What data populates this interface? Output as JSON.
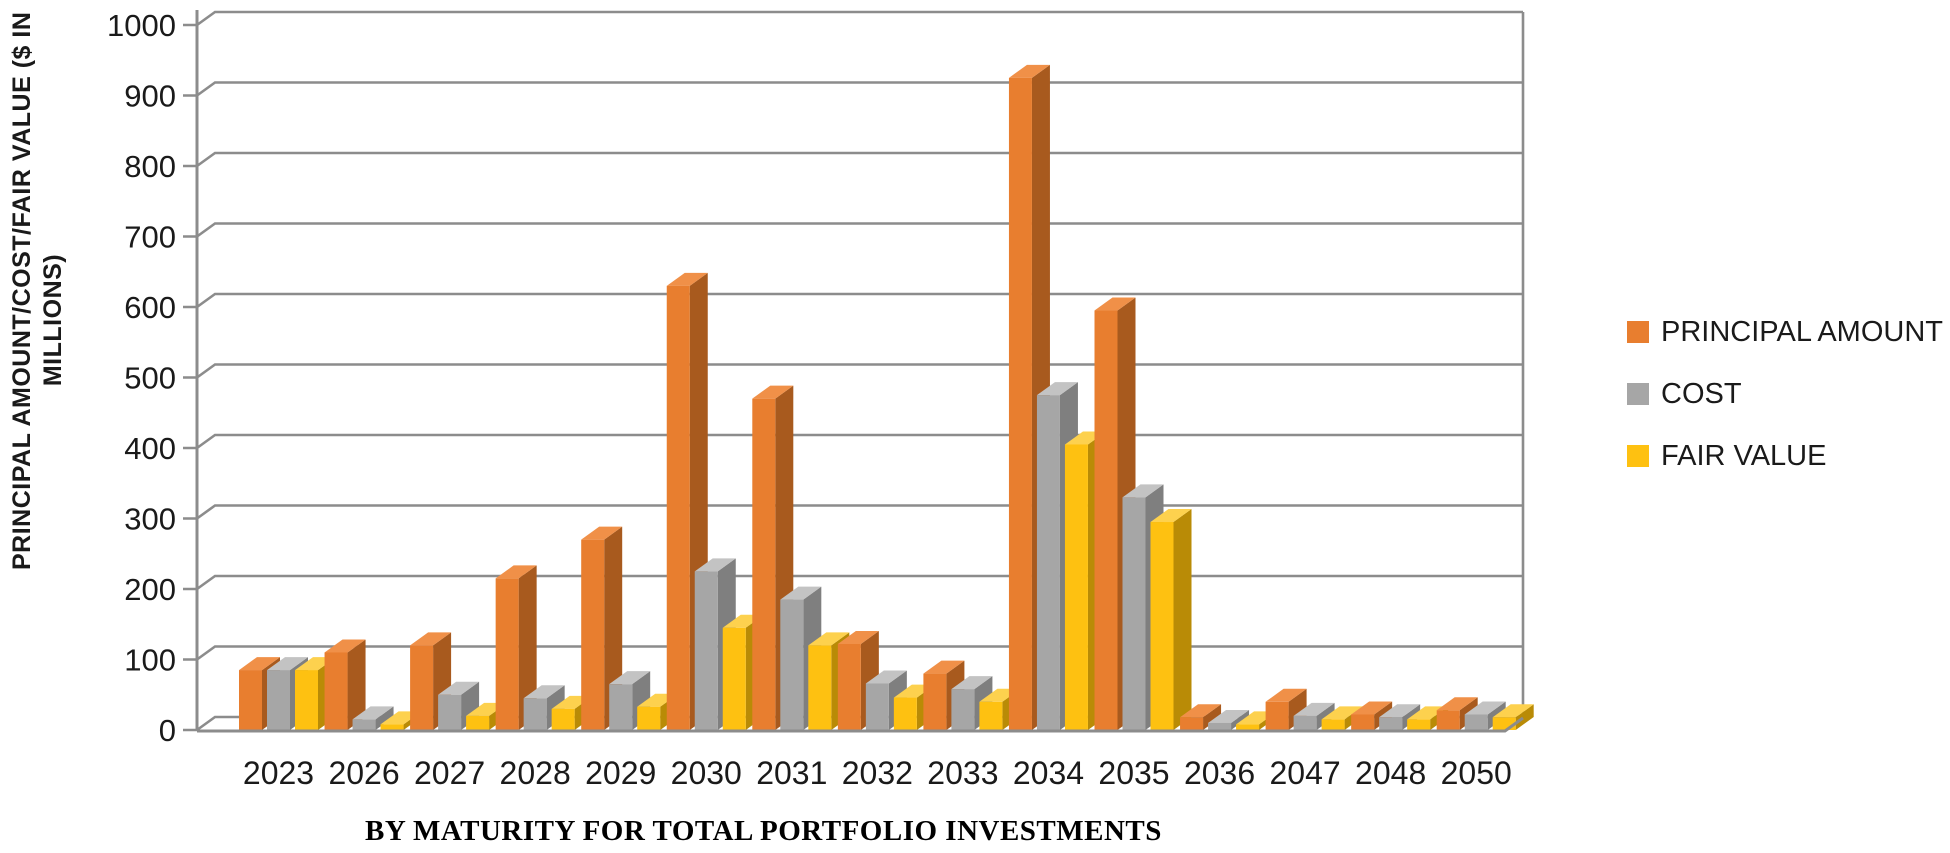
{
  "page": {
    "background": "#FFFFFF"
  },
  "chart_data": {
    "type": "bar",
    "variant": "3d-clustered-column",
    "title": "",
    "xlabel": "BY MATURITY FOR TOTAL PORTFOLIO INVESTMENTS",
    "ylabel": "PRINCIPAL AMOUNT/COST/FAIR VALUE ($ IN MILLIONS)",
    "ylabel_line1": "PRINCIPAL AMOUNT/COST/FAIR VALUE ($ IN",
    "ylabel_line2": "MILLIONS)",
    "categories": [
      "2023",
      "2026",
      "2027",
      "2028",
      "2029",
      "2030",
      "2031",
      "2032",
      "2033",
      "2034",
      "2035",
      "2036",
      "2047",
      "2048",
      "2050"
    ],
    "series": [
      {
        "name": "PRINCIPAL AMOUNT",
        "color": "#E87E2F",
        "color_side": "#A85A1E",
        "color_top": "#F09048",
        "values": [
          85,
          110,
          120,
          215,
          270,
          630,
          470,
          122,
          80,
          925,
          595,
          18,
          40,
          22,
          28
        ]
      },
      {
        "name": "COST",
        "color": "#A6A6A6",
        "color_side": "#7F7F7F",
        "color_top": "#C3C3C3",
        "values": [
          85,
          15,
          50,
          45,
          65,
          225,
          185,
          66,
          58,
          475,
          330,
          10,
          20,
          18,
          22
        ]
      },
      {
        "name": "FAIR VALUE",
        "color": "#FEC111",
        "color_side": "#B98B06",
        "color_top": "#FDD14E",
        "values": [
          85,
          8,
          20,
          30,
          33,
          145,
          120,
          46,
          40,
          405,
          295,
          8,
          15,
          15,
          18
        ]
      }
    ],
    "y_axis": {
      "min": 0,
      "max": 1000,
      "step": 100
    },
    "grid": true,
    "gridline_color": "#8C8C8C",
    "axis_color": "#8C8C8C",
    "tick_label_color": "#1a1a1a",
    "legend_position": "right"
  }
}
